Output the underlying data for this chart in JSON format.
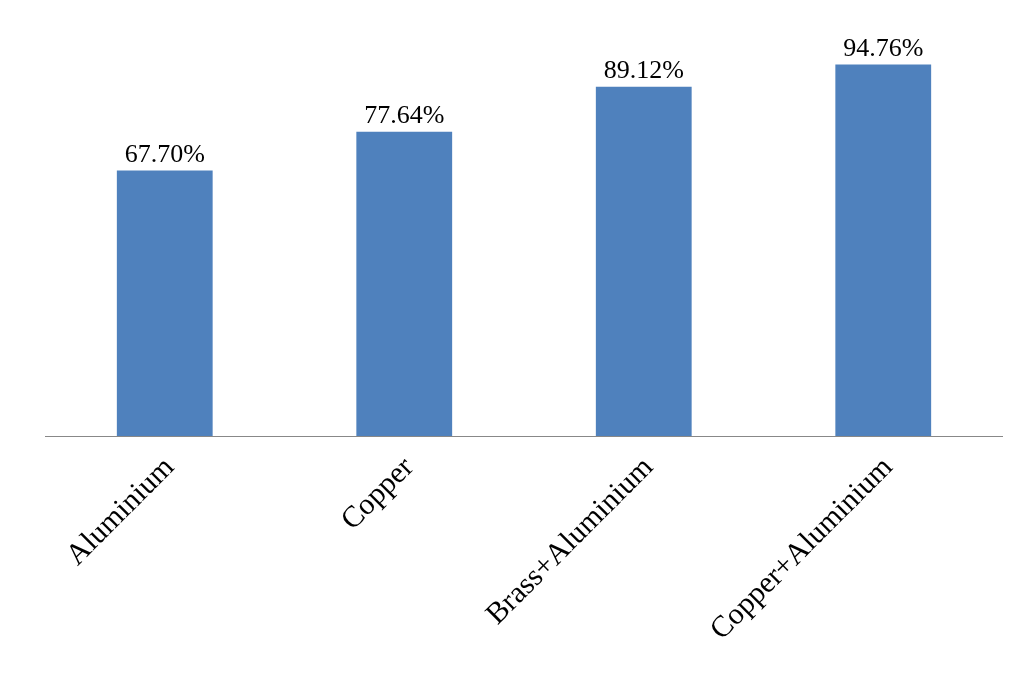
{
  "chart_data": {
    "type": "bar",
    "categories": [
      "Aluminium",
      "Copper",
      "Brass+Aluminium",
      "Copper+Aluminium"
    ],
    "values": [
      67.7,
      77.64,
      89.12,
      94.76
    ],
    "value_labels": [
      "67.70%",
      "77.64%",
      "89.12%",
      "94.76%"
    ],
    "color": "#4f81bd",
    "tick_labels": "x",
    "grid": false
  }
}
